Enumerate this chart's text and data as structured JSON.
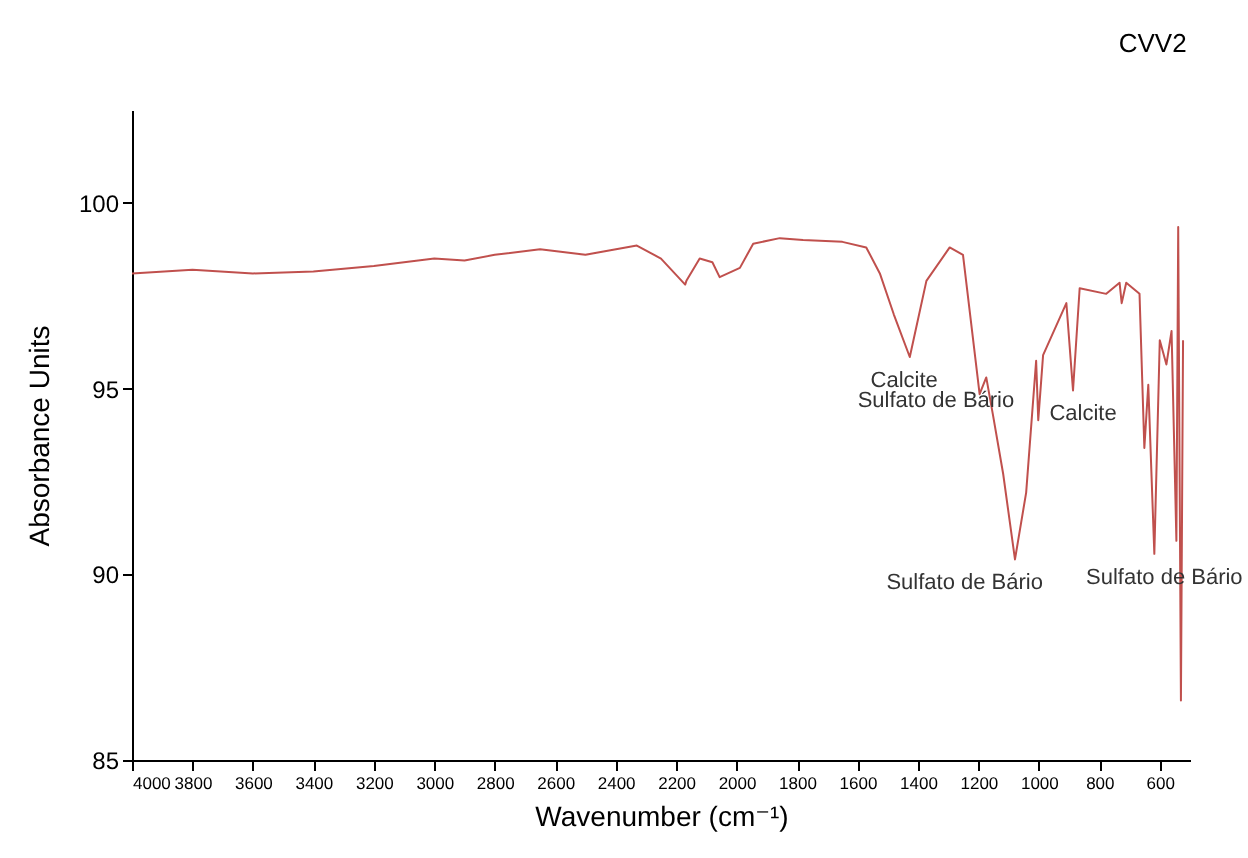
{
  "chart_data": {
    "type": "line",
    "title": "CVV2",
    "xlabel": "Wavenumber (cm⁻¹)",
    "ylabel": "Absorbance Units",
    "x": [
      4000,
      3800,
      3600,
      3400,
      3200,
      3000,
      2900,
      2800,
      2650,
      2500,
      2330,
      2250,
      2170,
      2166,
      2122,
      2080,
      2056,
      1989,
      1945,
      1857,
      1780,
      1650,
      1571,
      1526,
      1480,
      1427,
      1372,
      1295,
      1251,
      1196,
      1174,
      1152,
      1118,
      1079,
      1042,
      1009,
      1002,
      986,
      909,
      887,
      865,
      777,
      733,
      726,
      711,
      667,
      651,
      638,
      618,
      600,
      578,
      561,
      545,
      539,
      530,
      523
    ],
    "series": [
      {
        "color": "#c0504d",
        "values": [
          98.1,
          98.2,
          98.1,
          98.15,
          98.3,
          98.5,
          98.45,
          98.6,
          98.75,
          98.6,
          98.85,
          98.5,
          97.8,
          97.9,
          98.5,
          98.4,
          98.0,
          98.25,
          98.9,
          99.05,
          99.0,
          98.95,
          98.8,
          98.1,
          97.0,
          95.85,
          97.9,
          98.8,
          98.6,
          94.85,
          95.3,
          94.3,
          92.7,
          90.4,
          92.2,
          95.75,
          94.15,
          95.9,
          97.3,
          94.95,
          97.7,
          97.55,
          97.85,
          97.3,
          97.85,
          97.55,
          93.4,
          95.1,
          90.55,
          96.3,
          95.65,
          96.55,
          90.9,
          99.35,
          86.6,
          96.3
        ]
      }
    ],
    "annotations": [
      {
        "text": "Calcite",
        "x": 1427,
        "y": 95.85
      },
      {
        "text": "Sulfato de Bário",
        "x": 1174,
        "y": 95.3
      },
      {
        "text": "Calcite",
        "x": 887,
        "y": 94.95
      },
      {
        "text": "Sulfato de Bário",
        "x": 1079,
        "y": 90.4
      },
      {
        "text": "Sulfato de Bário",
        "x": 618,
        "y": 90.55
      }
    ],
    "xlim": [
      4000,
      500
    ],
    "xticks": [
      4000,
      3800,
      3600,
      3400,
      3200,
      3000,
      2800,
      2600,
      2400,
      2200,
      2000,
      1800,
      1600,
      1400,
      1200,
      1000,
      800,
      600
    ],
    "ylim": [
      85,
      102.5
    ],
    "yticks": [
      85,
      90,
      95,
      100
    ],
    "grid": false,
    "marker": "none",
    "line_style": "solid"
  }
}
